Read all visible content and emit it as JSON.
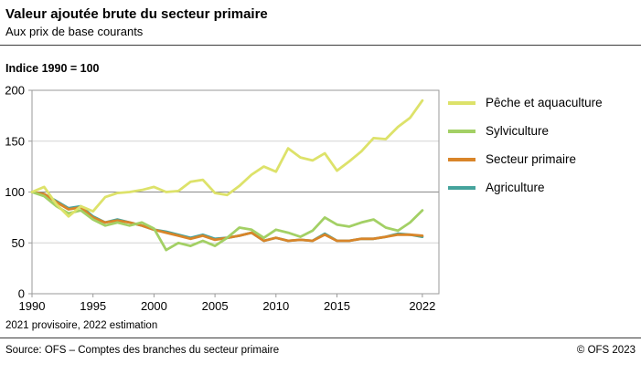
{
  "header": {
    "title": "Valeur ajoutée brute du secteur primaire",
    "subtitle": "Aux prix de base courants"
  },
  "chart_data": {
    "type": "line",
    "index_label": "Indice 1990 = 100",
    "x": [
      1990,
      1991,
      1992,
      1993,
      1994,
      1995,
      1996,
      1997,
      1998,
      1999,
      2000,
      2001,
      2002,
      2003,
      2004,
      2005,
      2006,
      2007,
      2008,
      2009,
      2010,
      2011,
      2012,
      2013,
      2014,
      2015,
      2016,
      2017,
      2018,
      2019,
      2020,
      2021,
      2022
    ],
    "series": [
      {
        "name": "Pêche et aquaculture",
        "color": "#dde26a",
        "values": [
          100,
          105,
          88,
          76,
          86,
          81,
          95,
          99,
          100,
          102,
          105,
          100,
          101,
          110,
          112,
          99,
          97,
          106,
          117,
          125,
          120,
          143,
          134,
          131,
          138,
          121,
          130,
          140,
          153,
          152,
          164,
          173,
          190
        ]
      },
      {
        "name": "Sylviculture",
        "color": "#a3d065",
        "values": [
          100,
          96,
          86,
          79,
          82,
          73,
          67,
          70,
          67,
          70,
          64,
          43,
          50,
          47,
          52,
          47,
          55,
          65,
          63,
          55,
          63,
          60,
          56,
          62,
          75,
          68,
          66,
          70,
          73,
          65,
          62,
          70,
          82
        ]
      },
      {
        "name": "Secteur primaire",
        "color": "#d98529",
        "values": [
          100,
          98,
          90,
          83,
          85,
          75,
          70,
          72,
          70,
          67,
          63,
          60,
          57,
          54,
          57,
          53,
          55,
          57,
          60,
          52,
          55,
          52,
          53,
          52,
          58,
          52,
          52,
          54,
          54,
          56,
          58,
          58,
          57
        ]
      },
      {
        "name": "Agriculture",
        "color": "#45a39c",
        "values": [
          100,
          98,
          91,
          84,
          86,
          76,
          70,
          73,
          70,
          67,
          63,
          61,
          58,
          55,
          58,
          54,
          55,
          57,
          60,
          52,
          55,
          52,
          53,
          52,
          59,
          52,
          52,
          54,
          54,
          56,
          59,
          58,
          56
        ]
      }
    ],
    "ylim": [
      0,
      200
    ],
    "yticks": [
      0,
      50,
      100,
      150,
      200
    ],
    "xticks": [
      1990,
      1995,
      2000,
      2005,
      2010,
      2015,
      2022
    ],
    "reference_line": 100,
    "grid": true,
    "legend_position": "right",
    "xlabel": "",
    "ylabel": ""
  },
  "note": "2021 provisoire, 2022 estimation",
  "footer": {
    "source": "Source: OFS – Comptes des branches du secteur primaire",
    "copyright": "© OFS 2023"
  }
}
